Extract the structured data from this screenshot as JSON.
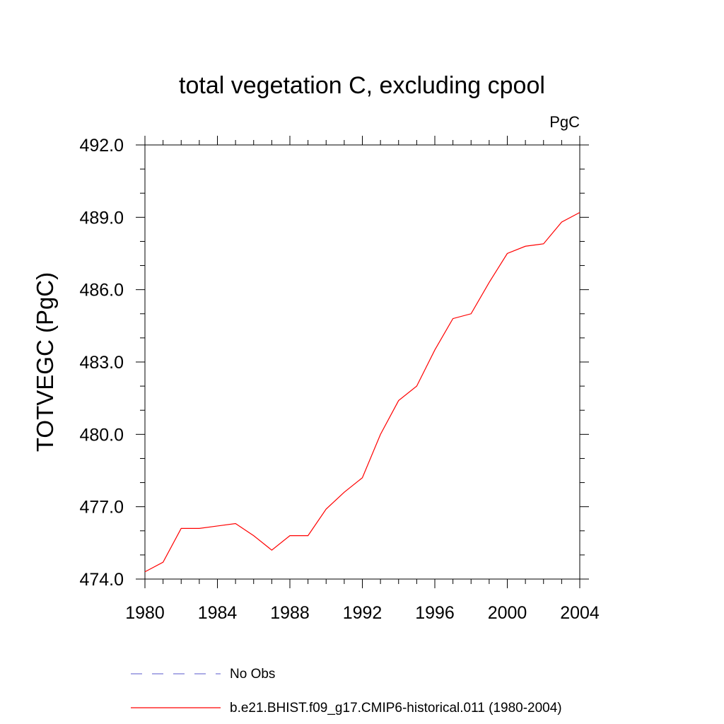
{
  "chart_data": {
    "type": "line",
    "title": "total vegetation C, excluding cpool",
    "units_label": "PgC",
    "ylabel": "TOTVEGC  (PgC)",
    "xlabel": "",
    "xlim": [
      1980,
      2004
    ],
    "ylim": [
      474.0,
      492.0
    ],
    "xticks": [
      1980,
      1984,
      1988,
      1992,
      1996,
      2000,
      2004
    ],
    "yticks": [
      "474.0",
      "477.0",
      "480.0",
      "483.0",
      "486.0",
      "489.0",
      "492.0"
    ],
    "grid": false,
    "legend_position": "bottom",
    "series": [
      {
        "name": "No Obs",
        "color": "#7b7bd6",
        "style": "dashed",
        "x": [],
        "values": []
      },
      {
        "name": "b.e21.BHIST.f09_g17.CMIP6-historical.011 (1980-2004)",
        "color": "#ff0000",
        "style": "solid",
        "x": [
          1980,
          1981,
          1982,
          1983,
          1984,
          1985,
          1986,
          1987,
          1988,
          1989,
          1990,
          1991,
          1992,
          1993,
          1994,
          1995,
          1996,
          1997,
          1998,
          1999,
          2000,
          2001,
          2002,
          2003,
          2004
        ],
        "values": [
          474.3,
          474.7,
          476.1,
          476.1,
          476.2,
          476.3,
          475.8,
          475.2,
          475.8,
          475.8,
          476.9,
          477.6,
          478.2,
          480.0,
          481.4,
          482.0,
          483.5,
          484.8,
          485.0,
          486.3,
          487.5,
          487.8,
          487.9,
          488.8,
          489.2
        ]
      }
    ]
  }
}
